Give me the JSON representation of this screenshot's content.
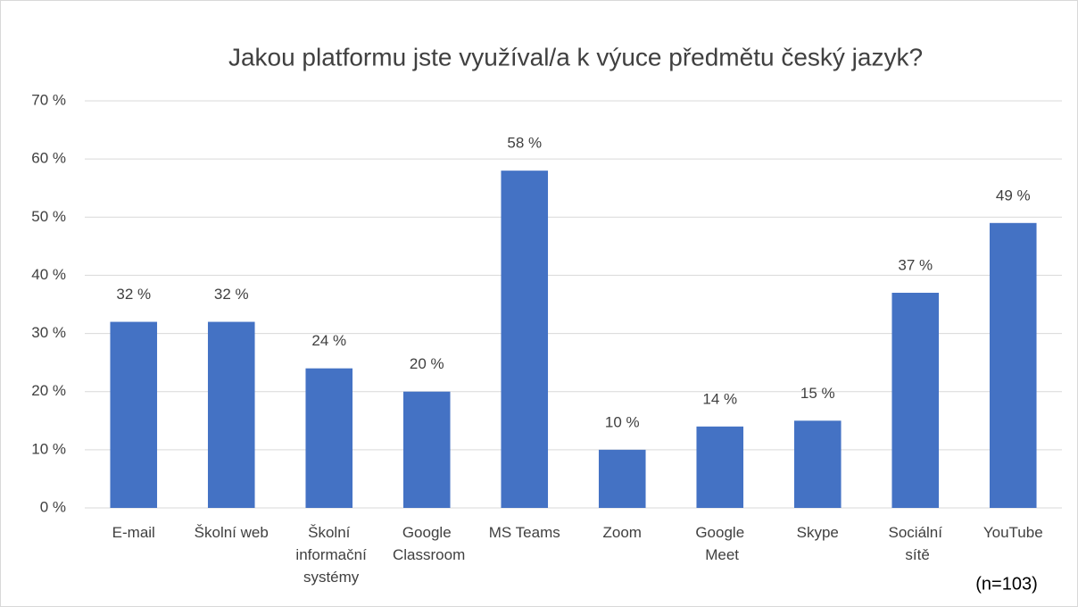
{
  "chart_data": {
    "type": "bar",
    "title": "Jakou platformu jste využíval/a k výuce předmětu český jazyk?",
    "categories": [
      "E-mail",
      "Školní web",
      "Školní informační systémy",
      "Google Classroom",
      "MS Teams",
      "Zoom",
      "Google Meet",
      "Skype",
      "Sociální sítě",
      "YouTube"
    ],
    "values": [
      32,
      32,
      24,
      20,
      58,
      10,
      14,
      15,
      37,
      49
    ],
    "value_labels": [
      "32 %",
      "32 %",
      "24 %",
      "20 %",
      "58 %",
      "10 %",
      "14 %",
      "15 %",
      "37 %",
      "49 %"
    ],
    "color": "#4472c4",
    "ylim": [
      0,
      70
    ],
    "yticks": [
      {
        "value": 0,
        "label": "0 %"
      },
      {
        "value": 10,
        "label": "10 %"
      },
      {
        "value": 20,
        "label": "20 %"
      },
      {
        "value": 30,
        "label": "30 %"
      },
      {
        "value": 40,
        "label": "40 %"
      },
      {
        "value": 50,
        "label": "50 %"
      },
      {
        "value": 60,
        "label": "60 %"
      },
      {
        "value": 70,
        "label": "70 %"
      }
    ],
    "grid": true,
    "annotation": "(n=103)"
  }
}
